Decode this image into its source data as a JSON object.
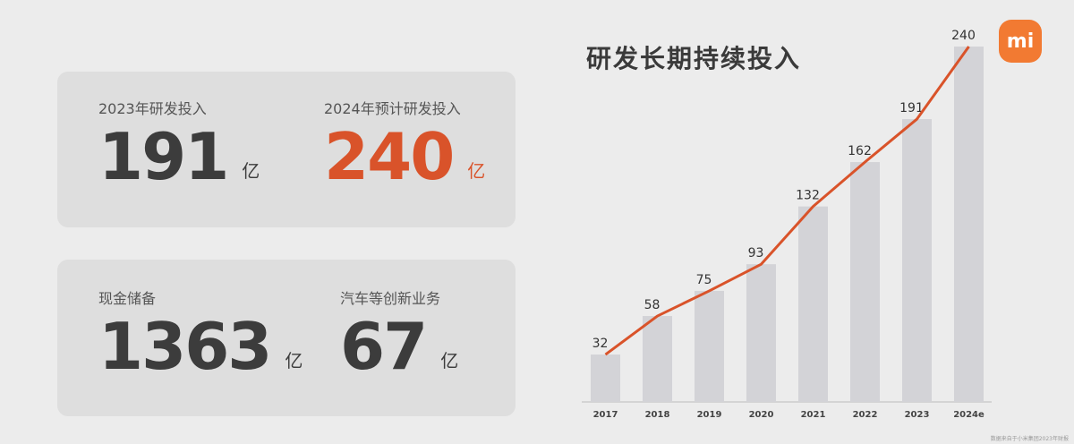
{
  "cards": {
    "top": {
      "left": {
        "label": "2023年研发投入",
        "value": "191",
        "unit": "亿"
      },
      "right": {
        "label": "2024年预计研发投入",
        "value": "240",
        "unit": "亿"
      }
    },
    "bottom": {
      "left": {
        "label": "现金储备",
        "value": "1363",
        "unit": "亿"
      },
      "right": {
        "label": "汽车等创新业务",
        "value": "67",
        "unit": "亿"
      }
    }
  },
  "logo": {
    "text": "mi"
  },
  "colors": {
    "accent": "#d9532a",
    "bar": "#d3d3d7",
    "line": "#d9532a",
    "logo": "#f27a32"
  },
  "source_note": "数据来自于小米集团2023年财报",
  "chart_data": {
    "type": "bar",
    "title": "研发长期持续投入",
    "categories": [
      "2017",
      "2018",
      "2019",
      "2020",
      "2021",
      "2022",
      "2023",
      "2024e"
    ],
    "values": [
      32,
      58,
      75,
      93,
      132,
      162,
      191,
      240
    ],
    "line_overlay": true,
    "ylim": [
      0,
      240
    ],
    "grid": false,
    "xlabel": "",
    "ylabel": ""
  }
}
